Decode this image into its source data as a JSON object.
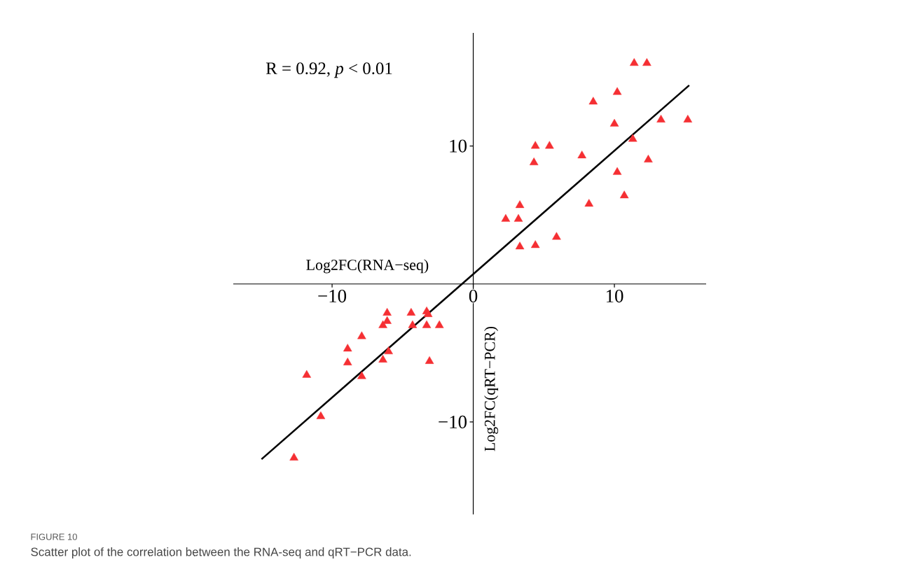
{
  "chart_data": {
    "type": "scatter",
    "xlabel": "Log2FC(RNA−seq)",
    "ylabel": "Log2FC(qRT−PCR)",
    "annotations": [
      "R = 0.92, *p* < 0.01",
      "FIGURE 10",
      "Scatter plot of the correlation between the RNA-seq and qRT−PCR data."
    ],
    "xlim": [
      -17,
      16.5
    ],
    "ylim": [
      -16.7,
      18.2
    ],
    "xticks": [
      {
        "value": -10,
        "label": "−10"
      },
      0,
      10
    ],
    "yticks": [
      {
        "value": -10,
        "label": "−10"
      },
      10
    ],
    "marker": "triangle",
    "series": [
      {
        "color": "#f52f33",
        "x": [
          11.4,
          12.3,
          10.2,
          8.5,
          10.0,
          13.3,
          15.2,
          11.3,
          4.4,
          5.4,
          4.3,
          7.7,
          12.4,
          10.2,
          10.7,
          3.3,
          8.2,
          2.3,
          3.2,
          3.3,
          4.4,
          5.9,
          -6.1,
          -6.1,
          -6.4,
          -4.4,
          -3.3,
          -3.2,
          -4.3,
          -3.3,
          -2.4,
          -7.9,
          -8.9,
          -8.9,
          -6.0,
          -6.4,
          -7.9,
          -11.8,
          -3.1,
          -10.8,
          -12.7
        ],
        "values": [
          16.0,
          16.0,
          13.9,
          13.2,
          11.6,
          11.9,
          11.9,
          10.5,
          10.0,
          10.0,
          8.8,
          9.3,
          9.0,
          8.1,
          6.4,
          5.7,
          5.8,
          4.7,
          4.7,
          2.7,
          2.8,
          3.4,
          -2.1,
          -2.7,
          -3.0,
          -2.1,
          -2.0,
          -2.2,
          -3.0,
          -3.0,
          -3.0,
          -3.8,
          -4.7,
          -5.7,
          -4.9,
          -5.5,
          -6.7,
          -6.6,
          -5.6,
          -9.6,
          -12.6
        ]
      },
      {
        "type": "line",
        "color": "#000000",
        "marker": "none",
        "x": [
          -15.0,
          15.3
        ],
        "values": [
          -12.7,
          14.4
        ]
      }
    ]
  }
}
